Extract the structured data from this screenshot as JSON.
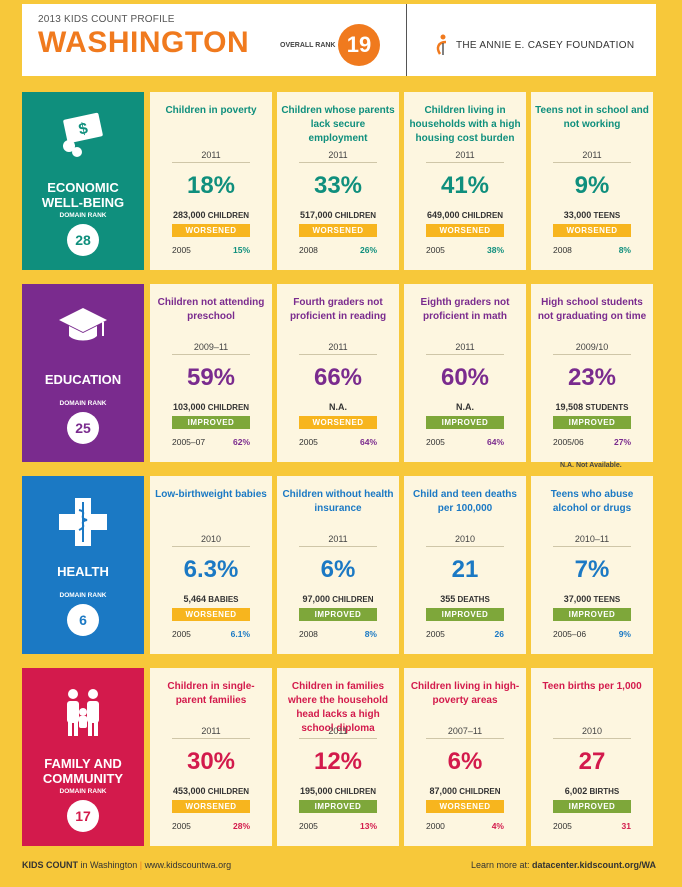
{
  "header": {
    "subtitle": "2013 KIDS COUNT PROFILE",
    "state": "WASHINGTON",
    "overall_rank_label": "OVERALL RANK",
    "overall_rank": "19",
    "foundation": "THE ANNIE E. CASEY FOUNDATION"
  },
  "colors": {
    "economic": "#0f8f7d",
    "education": "#7a2b8e",
    "health": "#1b79c4",
    "family": "#d31a4c",
    "worsened": "#f7b51e",
    "improved": "#7ea73a",
    "accent": "#f07a1e"
  },
  "domain_rank_label": "DOMAIN RANK",
  "domains": [
    {
      "name_line1": "ECONOMIC",
      "name_line2": "WELL-BEING",
      "rank": "28",
      "icon": "money-bill-coins-icon",
      "indicators": [
        {
          "label": "Children in poverty",
          "year": "2011",
          "value": "18%",
          "count": "283,000",
          "unit": "CHILDREN",
          "status": "WORSENED",
          "base_year": "2005",
          "base_value": "15%"
        },
        {
          "label": "Children whose parents lack secure employment",
          "year": "2011",
          "value": "33%",
          "count": "517,000",
          "unit": "CHILDREN",
          "status": "WORSENED",
          "base_year": "2008",
          "base_value": "26%"
        },
        {
          "label": "Children living in households with a high housing cost burden",
          "year": "2011",
          "value": "41%",
          "count": "649,000",
          "unit": "CHILDREN",
          "status": "WORSENED",
          "base_year": "2005",
          "base_value": "38%"
        },
        {
          "label": "Teens not in school and not working",
          "year": "2011",
          "value": "9%",
          "count": "33,000",
          "unit": "TEENS",
          "status": "WORSENED",
          "base_year": "2008",
          "base_value": "8%"
        }
      ]
    },
    {
      "name_line1": "EDUCATION",
      "name_line2": "",
      "rank": "25",
      "icon": "graduation-cap-icon",
      "indicators": [
        {
          "label": "Children not attending preschool",
          "year": "2009–11",
          "value": "59%",
          "count": "103,000",
          "unit": "CHILDREN",
          "status": "IMPROVED",
          "base_year": "2005–07",
          "base_value": "62%"
        },
        {
          "label": "Fourth graders not proficient in reading",
          "year": "2011",
          "value": "66%",
          "count": "N.A.",
          "unit": "",
          "status": "WORSENED",
          "base_year": "2005",
          "base_value": "64%"
        },
        {
          "label": "Eighth graders not proficient in math",
          "year": "2011",
          "value": "60%",
          "count": "N.A.",
          "unit": "",
          "status": "IMPROVED",
          "base_year": "2005",
          "base_value": "64%"
        },
        {
          "label": "High school students not graduating on time",
          "year": "2009/10",
          "value": "23%",
          "count": "19,508",
          "unit": "STUDENTS",
          "status": "IMPROVED",
          "base_year": "2005/06",
          "base_value": "27%"
        }
      ]
    },
    {
      "name_line1": "HEALTH",
      "name_line2": "",
      "rank": "6",
      "icon": "medical-cross-icon",
      "indicators": [
        {
          "label": "Low-birthweight babies",
          "year": "2010",
          "value": "6.3%",
          "count": "5,464",
          "unit": "BABIES",
          "status": "WORSENED",
          "base_year": "2005",
          "base_value": "6.1%"
        },
        {
          "label": "Children without health insurance",
          "year": "2011",
          "value": "6%",
          "count": "97,000",
          "unit": "CHILDREN",
          "status": "IMPROVED",
          "base_year": "2008",
          "base_value": "8%"
        },
        {
          "label": "Child and teen deaths per 100,000",
          "year": "2010",
          "value": "21",
          "count": "355",
          "unit": "DEATHS",
          "status": "IMPROVED",
          "base_year": "2005",
          "base_value": "26"
        },
        {
          "label": "Teens who abuse alcohol or drugs",
          "year": "2010–11",
          "value": "7%",
          "count": "37,000",
          "unit": "TEENS",
          "status": "IMPROVED",
          "base_year": "2005–06",
          "base_value": "9%"
        }
      ]
    },
    {
      "name_line1": "FAMILY AND",
      "name_line2": "COMMUNITY",
      "rank": "17",
      "icon": "family-icon",
      "indicators": [
        {
          "label": "Children in single-parent families",
          "year": "2011",
          "value": "30%",
          "count": "453,000",
          "unit": "CHILDREN",
          "status": "WORSENED",
          "base_year": "2005",
          "base_value": "28%"
        },
        {
          "label": "Children in families where the household head lacks a high school diploma",
          "year": "2011",
          "value": "12%",
          "count": "195,000",
          "unit": "CHILDREN",
          "status": "IMPROVED",
          "base_year": "2005",
          "base_value": "13%"
        },
        {
          "label": "Children living in high-poverty areas",
          "year": "2007–11",
          "value": "6%",
          "count": "87,000",
          "unit": "CHILDREN",
          "status": "WORSENED",
          "base_year": "2000",
          "base_value": "4%"
        },
        {
          "label": "Teen births per 1,000",
          "year": "2010",
          "value": "27",
          "count": "6,002",
          "unit": "BIRTHS",
          "status": "IMPROVED",
          "base_year": "2005",
          "base_value": "31"
        }
      ]
    }
  ],
  "na_note": "N.A. Not Available.",
  "footer": {
    "left_bold": "KIDS COUNT",
    "left_rest": " in Washington",
    "left_url": "www.kidscountwa.org",
    "right_text": "Learn more at: ",
    "right_url": "datacenter.kidscount.org/WA"
  }
}
